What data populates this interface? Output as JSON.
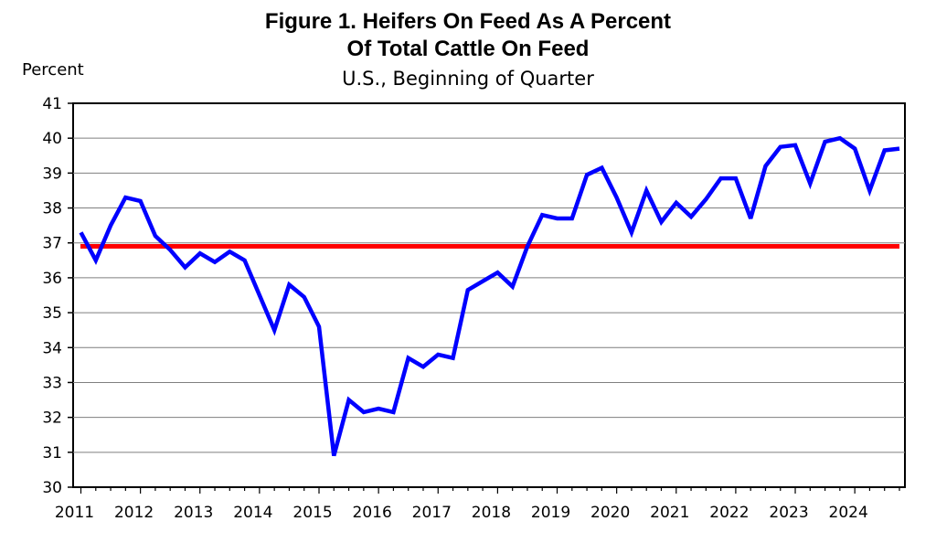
{
  "chart_data": {
    "type": "line",
    "title_line1": "Figure 1. Heifers On Feed As A Percent",
    "title_line2": "Of Total Cattle On Feed",
    "subtitle": "U.S., Beginning of Quarter",
    "ylabel": "Percent",
    "xlabel": "",
    "ylim": [
      30,
      41
    ],
    "yticks": [
      30,
      31,
      32,
      33,
      34,
      35,
      36,
      37,
      38,
      39,
      40,
      41
    ],
    "xticks": [
      "2011",
      "2012",
      "2013",
      "2014",
      "2015",
      "2016",
      "2017",
      "2018",
      "2019",
      "2020",
      "2021",
      "2022",
      "2023",
      "2024"
    ],
    "grid": true,
    "series": [
      {
        "color": "#0000ff",
        "x": [
          "2011 Q1",
          "2011 Q2",
          "2011 Q3",
          "2011 Q4",
          "2012 Q1",
          "2012 Q2",
          "2012 Q3",
          "2012 Q4",
          "2013 Q1",
          "2013 Q2",
          "2013 Q3",
          "2013 Q4",
          "2014 Q1",
          "2014 Q2",
          "2014 Q3",
          "2014 Q4",
          "2015 Q1",
          "2015 Q2",
          "2015 Q3",
          "2015 Q4",
          "2016 Q1",
          "2016 Q2",
          "2016 Q3",
          "2016 Q4",
          "2017 Q1",
          "2017 Q2",
          "2017 Q3",
          "2017 Q4",
          "2018 Q1",
          "2018 Q2",
          "2018 Q3",
          "2018 Q4",
          "2019 Q1",
          "2019 Q2",
          "2019 Q3",
          "2019 Q4",
          "2020 Q1",
          "2020 Q2",
          "2020 Q3",
          "2020 Q4",
          "2021 Q1",
          "2021 Q2",
          "2021 Q3",
          "2021 Q4",
          "2022 Q1",
          "2022 Q2",
          "2022 Q3",
          "2022 Q4",
          "2023 Q1",
          "2023 Q2",
          "2023 Q3",
          "2023 Q4",
          "2024 Q1",
          "2024 Q2",
          "2024 Q3",
          "2024 Q4"
        ],
        "values": [
          37.3,
          36.5,
          37.5,
          38.3,
          38.2,
          37.2,
          36.8,
          36.3,
          36.7,
          36.45,
          36.75,
          36.5,
          35.5,
          34.5,
          35.8,
          35.45,
          34.6,
          30.9,
          32.5,
          32.15,
          32.25,
          32.15,
          33.7,
          33.45,
          33.8,
          33.7,
          35.65,
          35.9,
          36.15,
          35.75,
          36.9,
          37.8,
          37.7,
          37.7,
          38.95,
          39.15,
          38.3,
          37.3,
          38.5,
          37.6,
          38.15,
          37.75,
          38.25,
          38.85,
          38.85,
          37.7,
          39.2,
          39.75,
          39.8,
          38.7,
          39.9,
          40.0,
          39.7,
          38.5,
          39.65,
          39.7
        ]
      },
      {
        "color": "#ff0000",
        "values": [
          36.9
        ]
      }
    ]
  }
}
